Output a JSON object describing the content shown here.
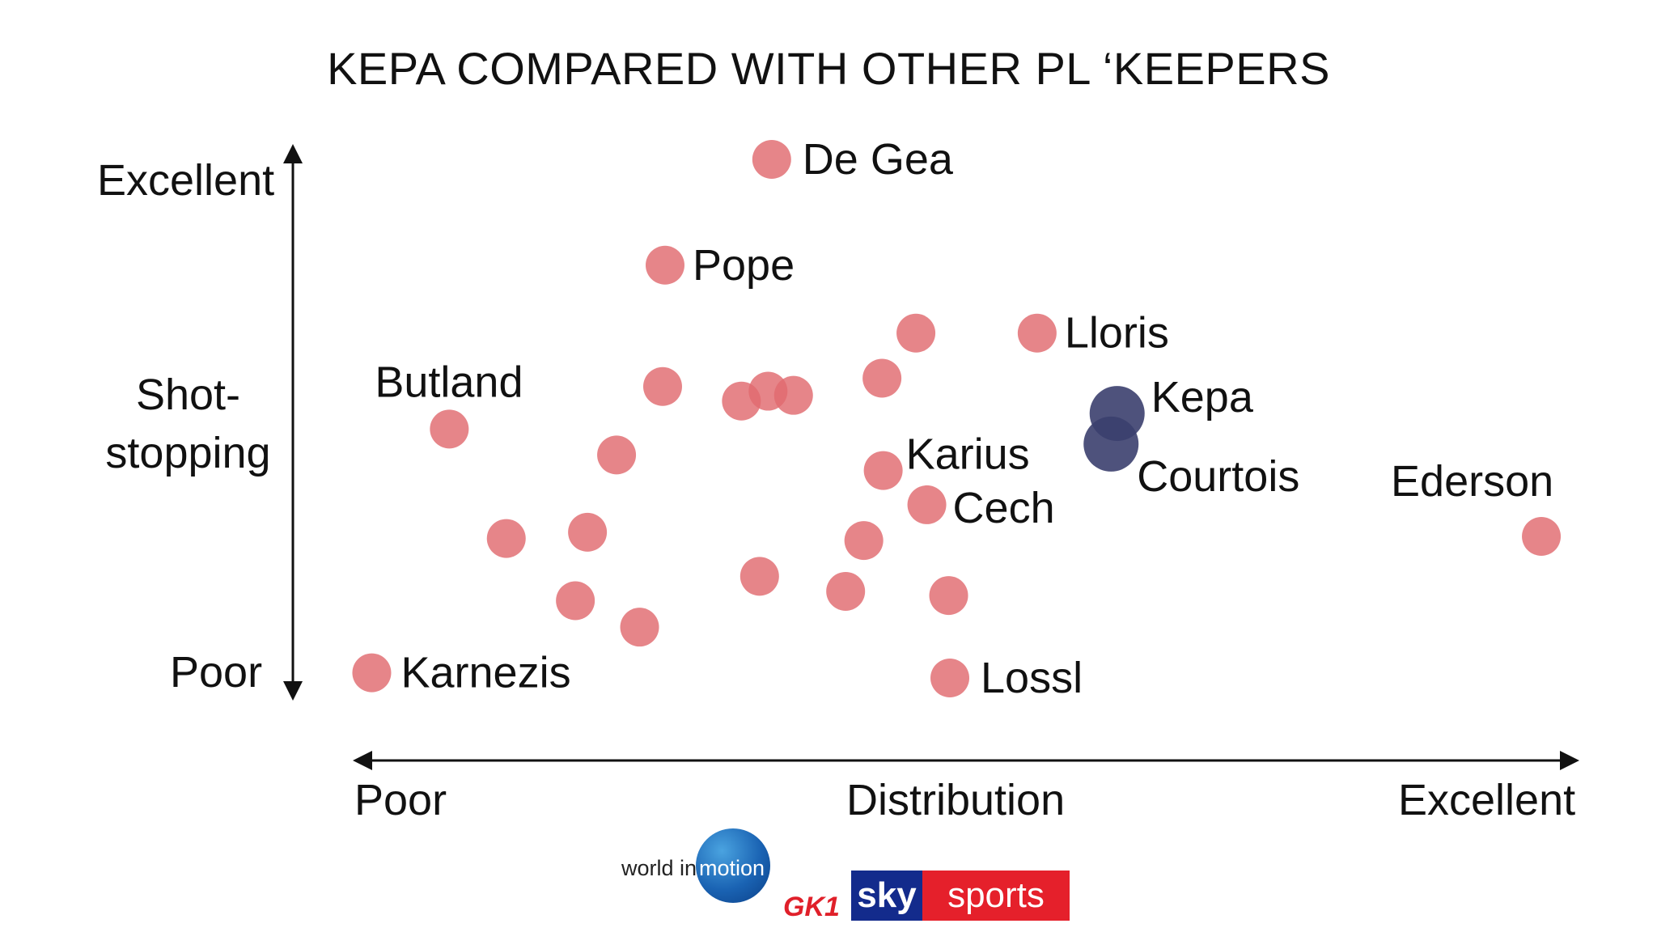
{
  "title": "KEPA COMPARED WITH OTHER PL ‘KEEPERS",
  "axes": {
    "y_label": [
      "Shot-",
      "stopping"
    ],
    "y_high": "Excellent",
    "y_low": "Poor",
    "x_label": "Distribution",
    "x_low": "Poor",
    "x_high": "Excellent"
  },
  "logos": {
    "world_in": "world in",
    "motion": "motion",
    "gk": "GK1",
    "sky": "sky",
    "sports": "sports"
  },
  "colors": {
    "others": "#e06a6f",
    "highlight": "#3b3f6e"
  },
  "chart_data": {
    "type": "scatter",
    "title": "KEPA COMPARED WITH OTHER PL ‘KEEPERS",
    "xlabel": "Distribution",
    "ylabel": "Shot-stopping",
    "xlim": [
      0,
      100
    ],
    "ylim": [
      0,
      100
    ],
    "grid": false,
    "points": [
      {
        "label": "De Gea",
        "x": 34.5,
        "y": 100.0,
        "highlight": false
      },
      {
        "label": "Pope",
        "x": 25.7,
        "y": 79.6,
        "highlight": false
      },
      {
        "label": "",
        "x": 46.4,
        "y": 66.5,
        "highlight": false
      },
      {
        "label": "Lloris",
        "x": 56.4,
        "y": 66.5,
        "highlight": false
      },
      {
        "label": "",
        "x": 43.6,
        "y": 57.8,
        "highlight": false
      },
      {
        "label": "",
        "x": 25.5,
        "y": 56.2,
        "highlight": false
      },
      {
        "label": "",
        "x": 32.0,
        "y": 53.4,
        "highlight": false
      },
      {
        "label": "",
        "x": 34.2,
        "y": 55.3,
        "highlight": false
      },
      {
        "label": "",
        "x": 36.3,
        "y": 54.5,
        "highlight": false
      },
      {
        "label": "Kepa",
        "x": 63.0,
        "y": 51.0,
        "highlight": true
      },
      {
        "label": "Butland",
        "x": 7.9,
        "y": 48.0,
        "highlight": false
      },
      {
        "label": "",
        "x": 21.7,
        "y": 43.0,
        "highlight": false
      },
      {
        "label": "Courtois",
        "x": 62.5,
        "y": 45.1,
        "highlight": true
      },
      {
        "label": "Karius",
        "x": 43.7,
        "y": 40.0,
        "highlight": false
      },
      {
        "label": "Cech",
        "x": 47.3,
        "y": 33.4,
        "highlight": false
      },
      {
        "label": "",
        "x": 42.1,
        "y": 26.5,
        "highlight": false
      },
      {
        "label": "",
        "x": 19.3,
        "y": 28.1,
        "highlight": false
      },
      {
        "label": "",
        "x": 12.6,
        "y": 26.9,
        "highlight": false
      },
      {
        "label": "Ederson",
        "x": 98.0,
        "y": 27.3,
        "highlight": false
      },
      {
        "label": "",
        "x": 33.5,
        "y": 19.6,
        "highlight": false
      },
      {
        "label": "",
        "x": 40.6,
        "y": 16.7,
        "highlight": false
      },
      {
        "label": "",
        "x": 49.1,
        "y": 15.9,
        "highlight": false
      },
      {
        "label": "",
        "x": 18.3,
        "y": 14.9,
        "highlight": false
      },
      {
        "label": "",
        "x": 23.6,
        "y": 9.8,
        "highlight": false
      },
      {
        "label": "Karnezis",
        "x": 1.5,
        "y": 1.0,
        "highlight": false
      },
      {
        "label": "Lossl",
        "x": 49.2,
        "y": 0.0,
        "highlight": false
      }
    ]
  }
}
